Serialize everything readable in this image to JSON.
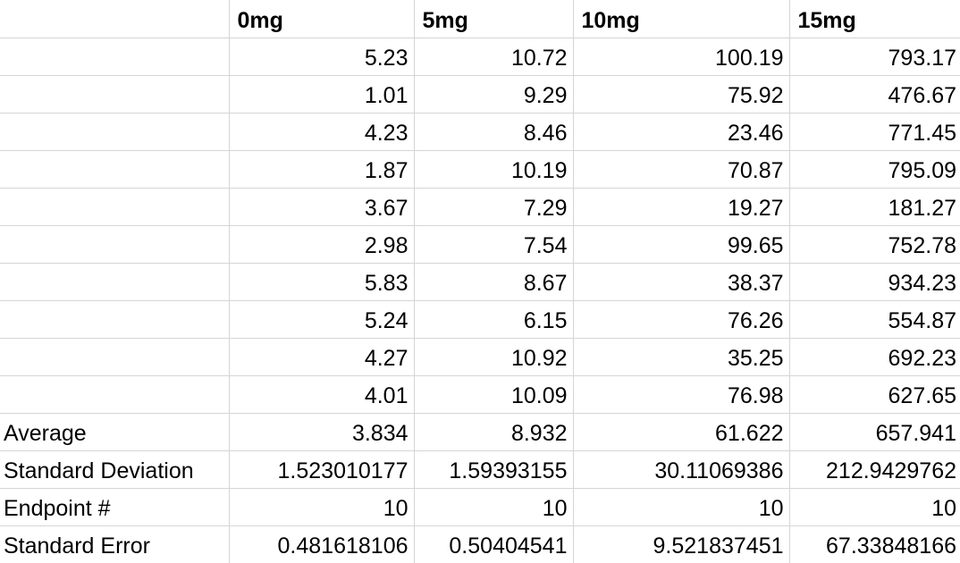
{
  "app": {
    "description": "spreadsheet-grid"
  },
  "colors": {
    "gridline": "#d5d5d5",
    "text": "#000000",
    "background": "#ffffff"
  },
  "table": {
    "column_headers": [
      "",
      "0mg",
      "5mg",
      "10mg",
      "15mg"
    ],
    "data_rows": [
      {
        "label": "",
        "values": [
          "5.23",
          "10.72",
          "100.19",
          "793.17"
        ]
      },
      {
        "label": "",
        "values": [
          "1.01",
          "9.29",
          "75.92",
          "476.67"
        ]
      },
      {
        "label": "",
        "values": [
          "4.23",
          "8.46",
          "23.46",
          "771.45"
        ]
      },
      {
        "label": "",
        "values": [
          "1.87",
          "10.19",
          "70.87",
          "795.09"
        ]
      },
      {
        "label": "",
        "values": [
          "3.67",
          "7.29",
          "19.27",
          "181.27"
        ]
      },
      {
        "label": "",
        "values": [
          "2.98",
          "7.54",
          "99.65",
          "752.78"
        ]
      },
      {
        "label": "",
        "values": [
          "5.83",
          "8.67",
          "38.37",
          "934.23"
        ]
      },
      {
        "label": "",
        "values": [
          "5.24",
          "6.15",
          "76.26",
          "554.87"
        ]
      },
      {
        "label": "",
        "values": [
          "4.27",
          "10.92",
          "35.25",
          "692.23"
        ]
      },
      {
        "label": "",
        "values": [
          "4.01",
          "10.09",
          "76.98",
          "627.65"
        ]
      }
    ],
    "summary_rows": [
      {
        "label": "Average",
        "values": [
          "3.834",
          "8.932",
          "61.622",
          "657.941"
        ]
      },
      {
        "label": "Standard Deviation",
        "values": [
          "1.523010177",
          "1.59393155",
          "30.11069386",
          "212.9429762"
        ]
      },
      {
        "label": "Endpoint #",
        "values": [
          "10",
          "10",
          "10",
          "10"
        ]
      },
      {
        "label": "Standard Error",
        "values": [
          "0.481618106",
          "0.50404541",
          "9.521837451",
          "67.33848166"
        ]
      }
    ]
  }
}
